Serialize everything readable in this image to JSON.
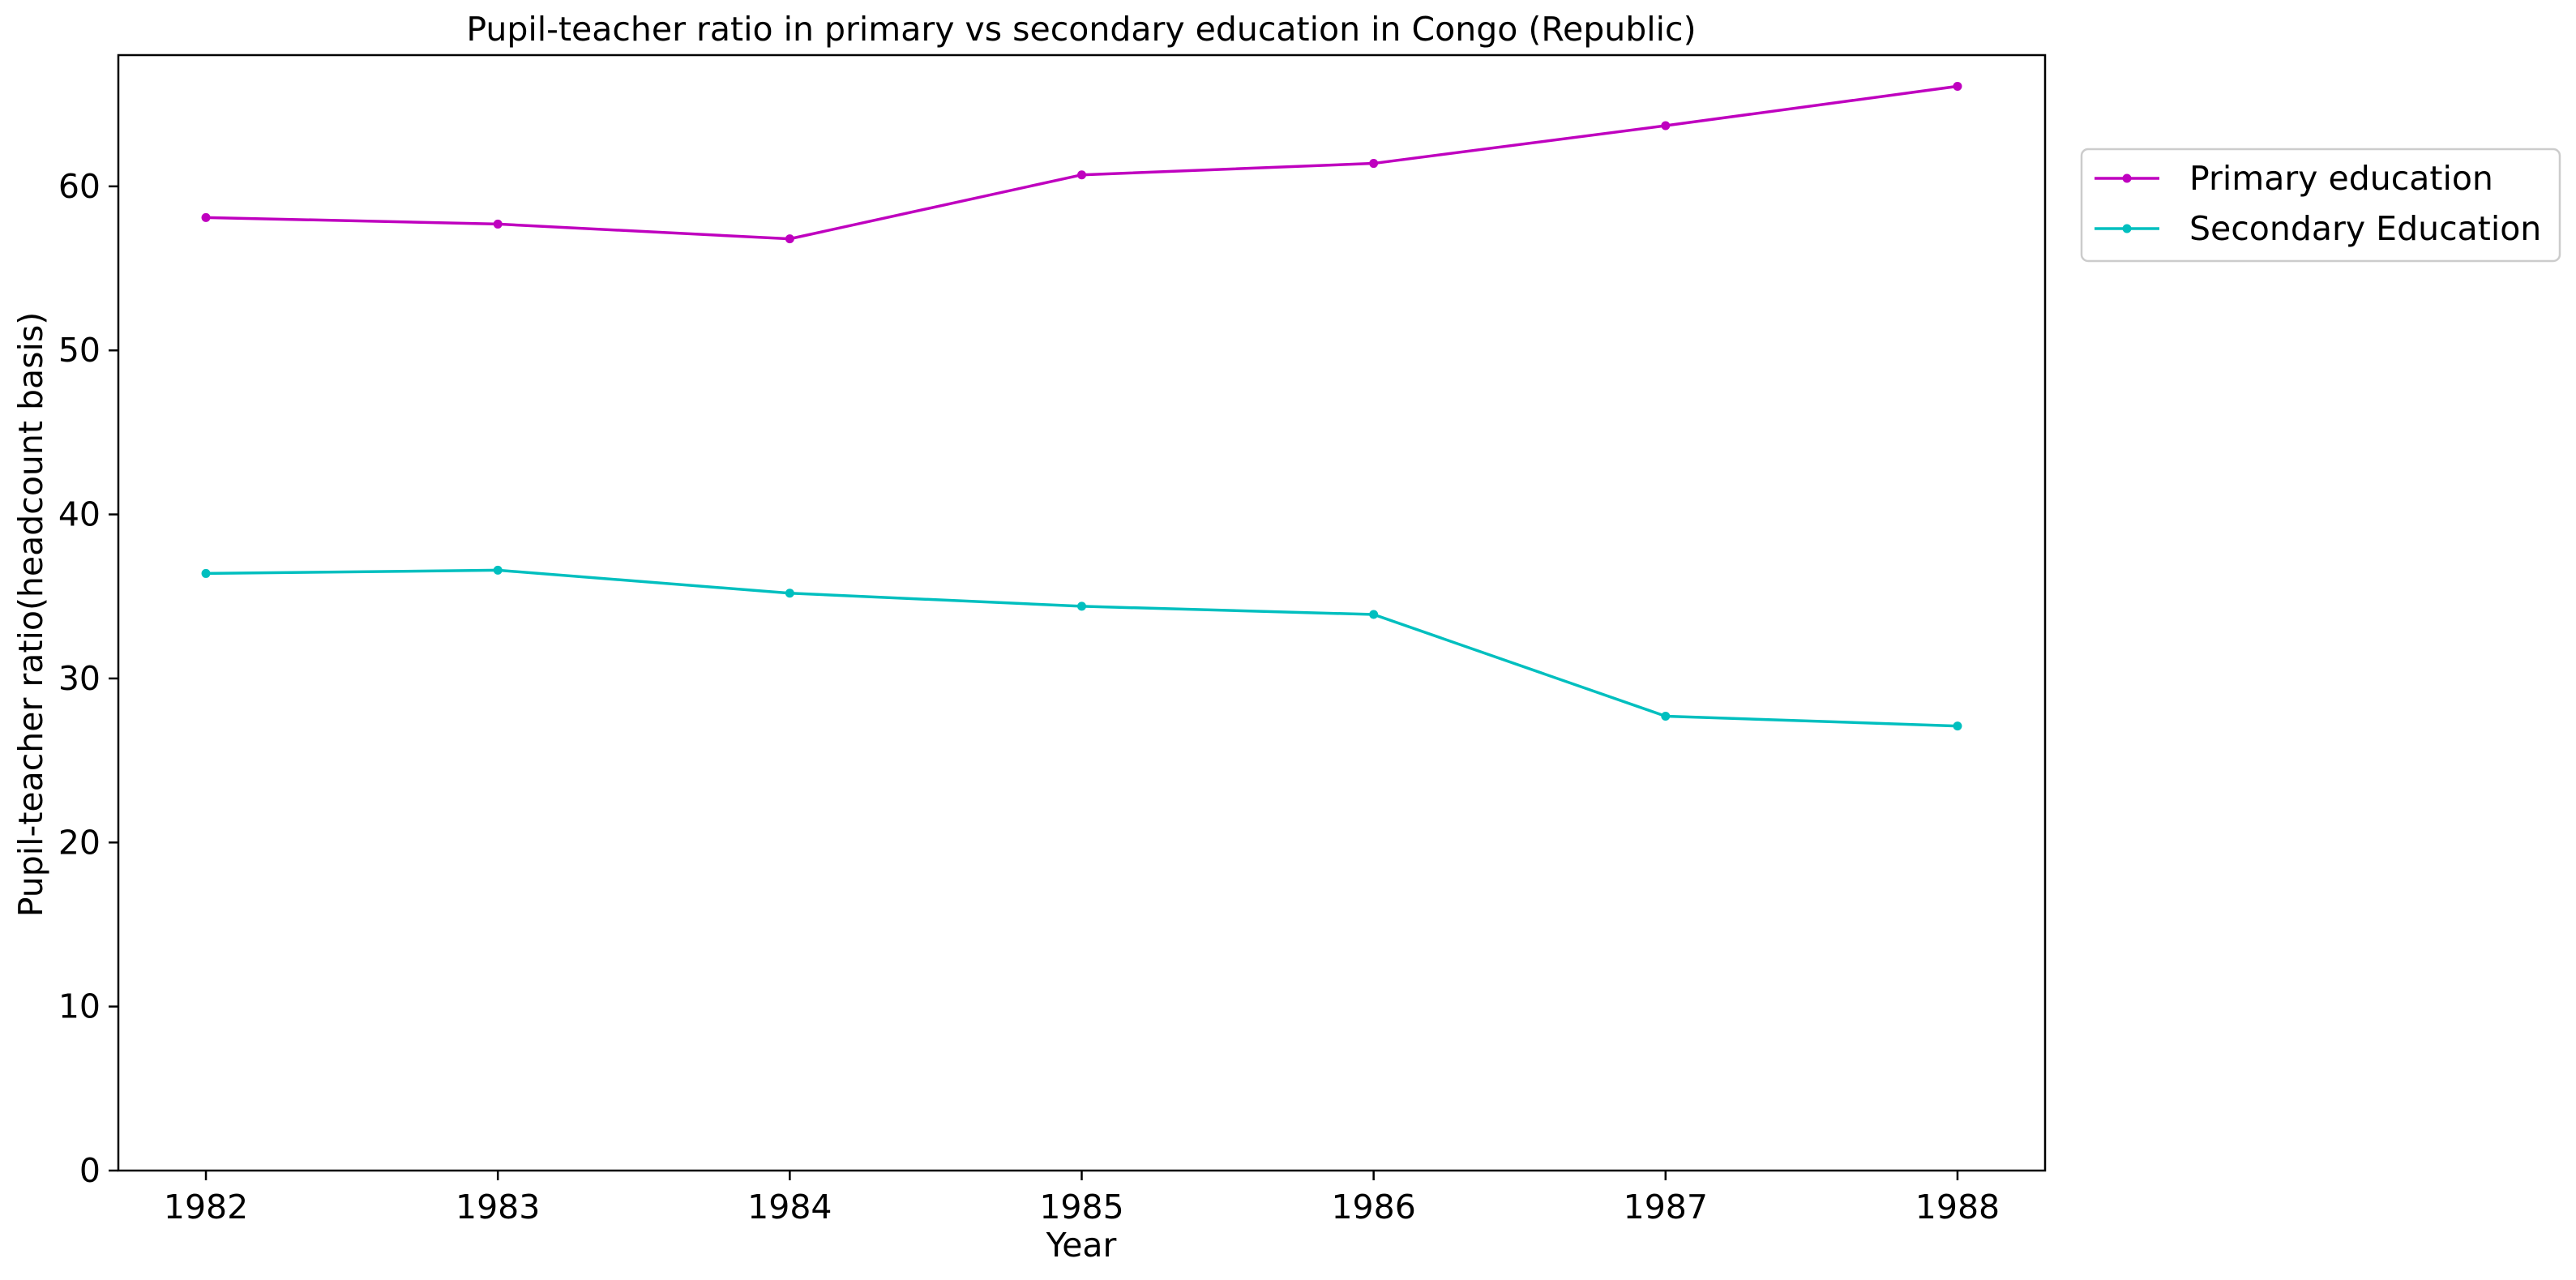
{
  "chart_data": {
    "type": "line",
    "title": "Pupil-teacher ratio in primary vs secondary education in Congo (Republic)",
    "xlabel": "Year",
    "ylabel": "Pupil-teacher ratio(headcount basis)",
    "x": [
      1982,
      1983,
      1984,
      1985,
      1986,
      1987,
      1988
    ],
    "x_ticks": [
      "1982",
      "1983",
      "1984",
      "1985",
      "1986",
      "1987",
      "1988"
    ],
    "y_ticks": [
      "0",
      "10",
      "20",
      "30",
      "40",
      "50",
      "60"
    ],
    "ylim": [
      0,
      68
    ],
    "xlim": [
      1981.7,
      1988.3
    ],
    "grid": false,
    "legend_position": "outside upper-right",
    "series": [
      {
        "name": "Primary education",
        "color": "#bf00bf",
        "values": [
          58.1,
          57.7,
          56.8,
          60.7,
          61.4,
          63.7,
          66.1
        ]
      },
      {
        "name": "Secondary Education",
        "color": "#00bfbf",
        "values": [
          36.4,
          36.6,
          35.2,
          34.4,
          33.9,
          27.7,
          27.1
        ]
      }
    ]
  }
}
